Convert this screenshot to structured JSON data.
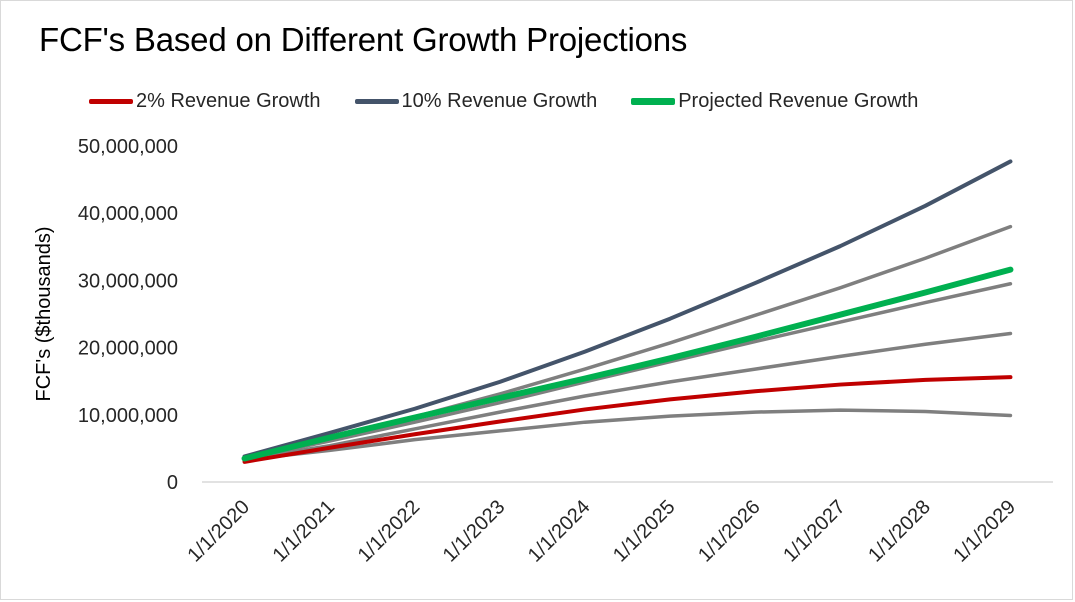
{
  "chart_data": {
    "type": "line",
    "title": "FCF's Based on Different Growth Projections",
    "ylabel": "FCF's ($thousands)",
    "xlabel": "",
    "ylim": [
      0,
      50000000
    ],
    "yticks": [
      0,
      10000000,
      20000000,
      30000000,
      40000000,
      50000000
    ],
    "ytick_labels": [
      "0",
      "10,000,000",
      "20,000,000",
      "30,000,000",
      "40,000,000",
      "50,000,000"
    ],
    "x": [
      "1/1/2020",
      "1/1/2021",
      "1/1/2022",
      "1/1/2023",
      "1/1/2024",
      "1/1/2025",
      "1/1/2026",
      "1/1/2027",
      "1/1/2028",
      "1/1/2029"
    ],
    "legend_position": "top",
    "grid": false,
    "series": [
      {
        "name": "",
        "color": "#7f7f7f",
        "width": 3.5,
        "in_legend": false,
        "values": [
          3300000,
          4700000,
          6300000,
          7600000,
          8900000,
          9800000,
          10400000,
          10700000,
          10500000,
          9900000
        ]
      },
      {
        "name": "",
        "color": "#7f7f7f",
        "width": 3.5,
        "in_legend": false,
        "values": [
          3400000,
          5400000,
          7900000,
          10400000,
          12800000,
          14900000,
          16800000,
          18700000,
          20500000,
          22100000
        ]
      },
      {
        "name": "",
        "color": "#7f7f7f",
        "width": 3.5,
        "in_legend": false,
        "values": [
          3500000,
          6100000,
          8900000,
          11800000,
          14900000,
          17900000,
          20900000,
          23800000,
          26700000,
          29500000
        ]
      },
      {
        "name": "",
        "color": "#7f7f7f",
        "width": 3.5,
        "in_legend": false,
        "values": [
          3600000,
          6400000,
          9700000,
          13100000,
          16800000,
          20700000,
          24800000,
          28900000,
          33300000,
          38000000
        ]
      },
      {
        "name": "2% Revenue Growth",
        "color": "#c00000",
        "width": 4,
        "in_legend": true,
        "values": [
          3000000,
          5100000,
          7100000,
          9000000,
          10800000,
          12300000,
          13500000,
          14500000,
          15200000,
          15600000
        ]
      },
      {
        "name": "10% Revenue Growth",
        "color": "#44546a",
        "width": 4,
        "in_legend": true,
        "values": [
          3800000,
          7300000,
          10900000,
          14900000,
          19400000,
          24300000,
          29600000,
          35100000,
          41100000,
          47700000
        ]
      },
      {
        "name": "Projected Revenue Growth",
        "color": "#00b050",
        "width": 6,
        "in_legend": true,
        "values": [
          3500000,
          6600000,
          9600000,
          12500000,
          15400000,
          18400000,
          21600000,
          24900000,
          28200000,
          31600000
        ]
      }
    ]
  },
  "legend": [
    {
      "label": "2% Revenue Growth",
      "color": "#c00000"
    },
    {
      "label": "10% Revenue Growth",
      "color": "#44546a"
    },
    {
      "label": "Projected Revenue Growth",
      "color": "#00b050"
    }
  ]
}
